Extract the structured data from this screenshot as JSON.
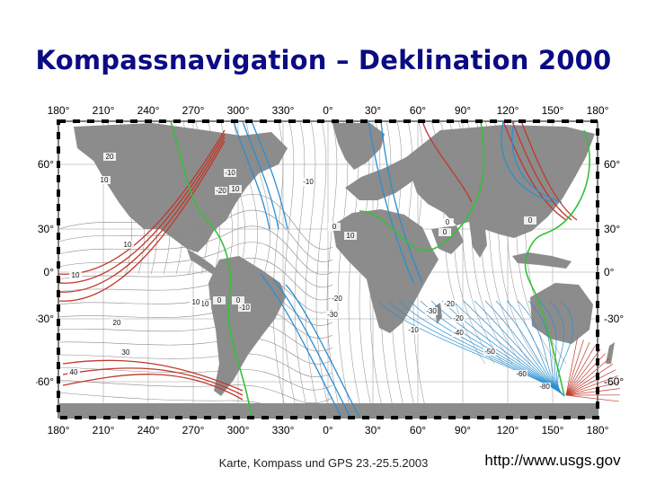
{
  "title": "Kompassnavigation – Deklination 2000",
  "map": {
    "lon_ticks": [
      "180°",
      "210°",
      "240°",
      "270°",
      "300°",
      "330°",
      "0°",
      "30°",
      "60°",
      "90°",
      "120°",
      "150°",
      "180°"
    ],
    "lat_ticks": [
      "60°",
      "30°",
      "0°",
      "-30°",
      "-60°"
    ],
    "contour_labels": [
      "20",
      "10",
      "10",
      "10",
      "0",
      "10",
      "-20",
      "10",
      "-10",
      "0",
      "-10",
      "0",
      "0",
      "-10",
      "10",
      "0",
      "-10",
      "-20",
      "10",
      "20",
      "30",
      "40",
      "-20",
      "-30",
      "-20",
      "-40",
      "-50",
      "-60",
      "-30",
      "0",
      "-80"
    ],
    "colors": {
      "positive": "#c0392b",
      "negative": "#2a8fd1",
      "zero": "#35c03a",
      "minor": "#8a8a8a",
      "land": "#8c8c8c",
      "grid": "#bdbdbd"
    }
  },
  "footer": {
    "caption": "Karte, Kompass und GPS 23.-25.5.2003",
    "url": "http://www.usgs.gov"
  }
}
